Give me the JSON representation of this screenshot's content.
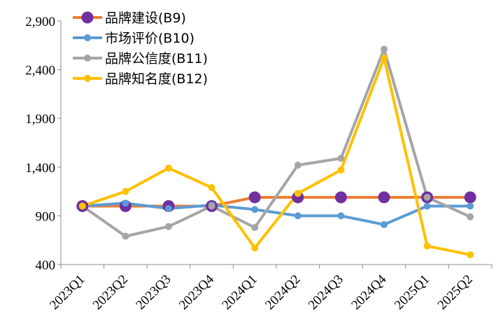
{
  "chart_data": {
    "type": "line",
    "categories": [
      "2023Q1",
      "2023Q2",
      "2023Q3",
      "2023Q4",
      "2024Q1",
      "2024Q2",
      "2024Q3",
      "2024Q4",
      "2025Q1",
      "2025Q2"
    ],
    "ylim": [
      400,
      2900
    ],
    "yticks": [
      "400",
      "900",
      "1,400",
      "1,900",
      "2,400",
      "2,900"
    ],
    "ytick_values": [
      400,
      900,
      1400,
      1900,
      2400,
      2900
    ],
    "legend_position": "top-left",
    "grid": false,
    "series": [
      {
        "name": "品牌建设(B9)",
        "color": "#ED7D31",
        "marker_color": "#7030A0",
        "marker": "large-circle",
        "values": [
          1000,
          1000,
          1000,
          1000,
          1090,
          1090,
          1090,
          1090,
          1090,
          1090
        ]
      },
      {
        "name": "市场评价(B10)",
        "color": "#5B9BD5",
        "marker_color": "#5B9BD5",
        "marker": "circle",
        "values": [
          1000,
          1030,
          975,
          1010,
          965,
          900,
          900,
          810,
          1000,
          1000
        ]
      },
      {
        "name": "品牌公信度(B11)",
        "color": "#A5A5A5",
        "marker_color": "#A5A5A5",
        "marker": "circle",
        "values": [
          1000,
          690,
          790,
          1000,
          780,
          1420,
          1490,
          2610,
          1090,
          890
        ]
      },
      {
        "name": "品牌知名度(B12)",
        "color": "#FFC000",
        "marker_color": "#FFC000",
        "marker": "circle",
        "values": [
          1000,
          1150,
          1390,
          1190,
          570,
          1130,
          1370,
          2520,
          590,
          500
        ]
      }
    ]
  }
}
